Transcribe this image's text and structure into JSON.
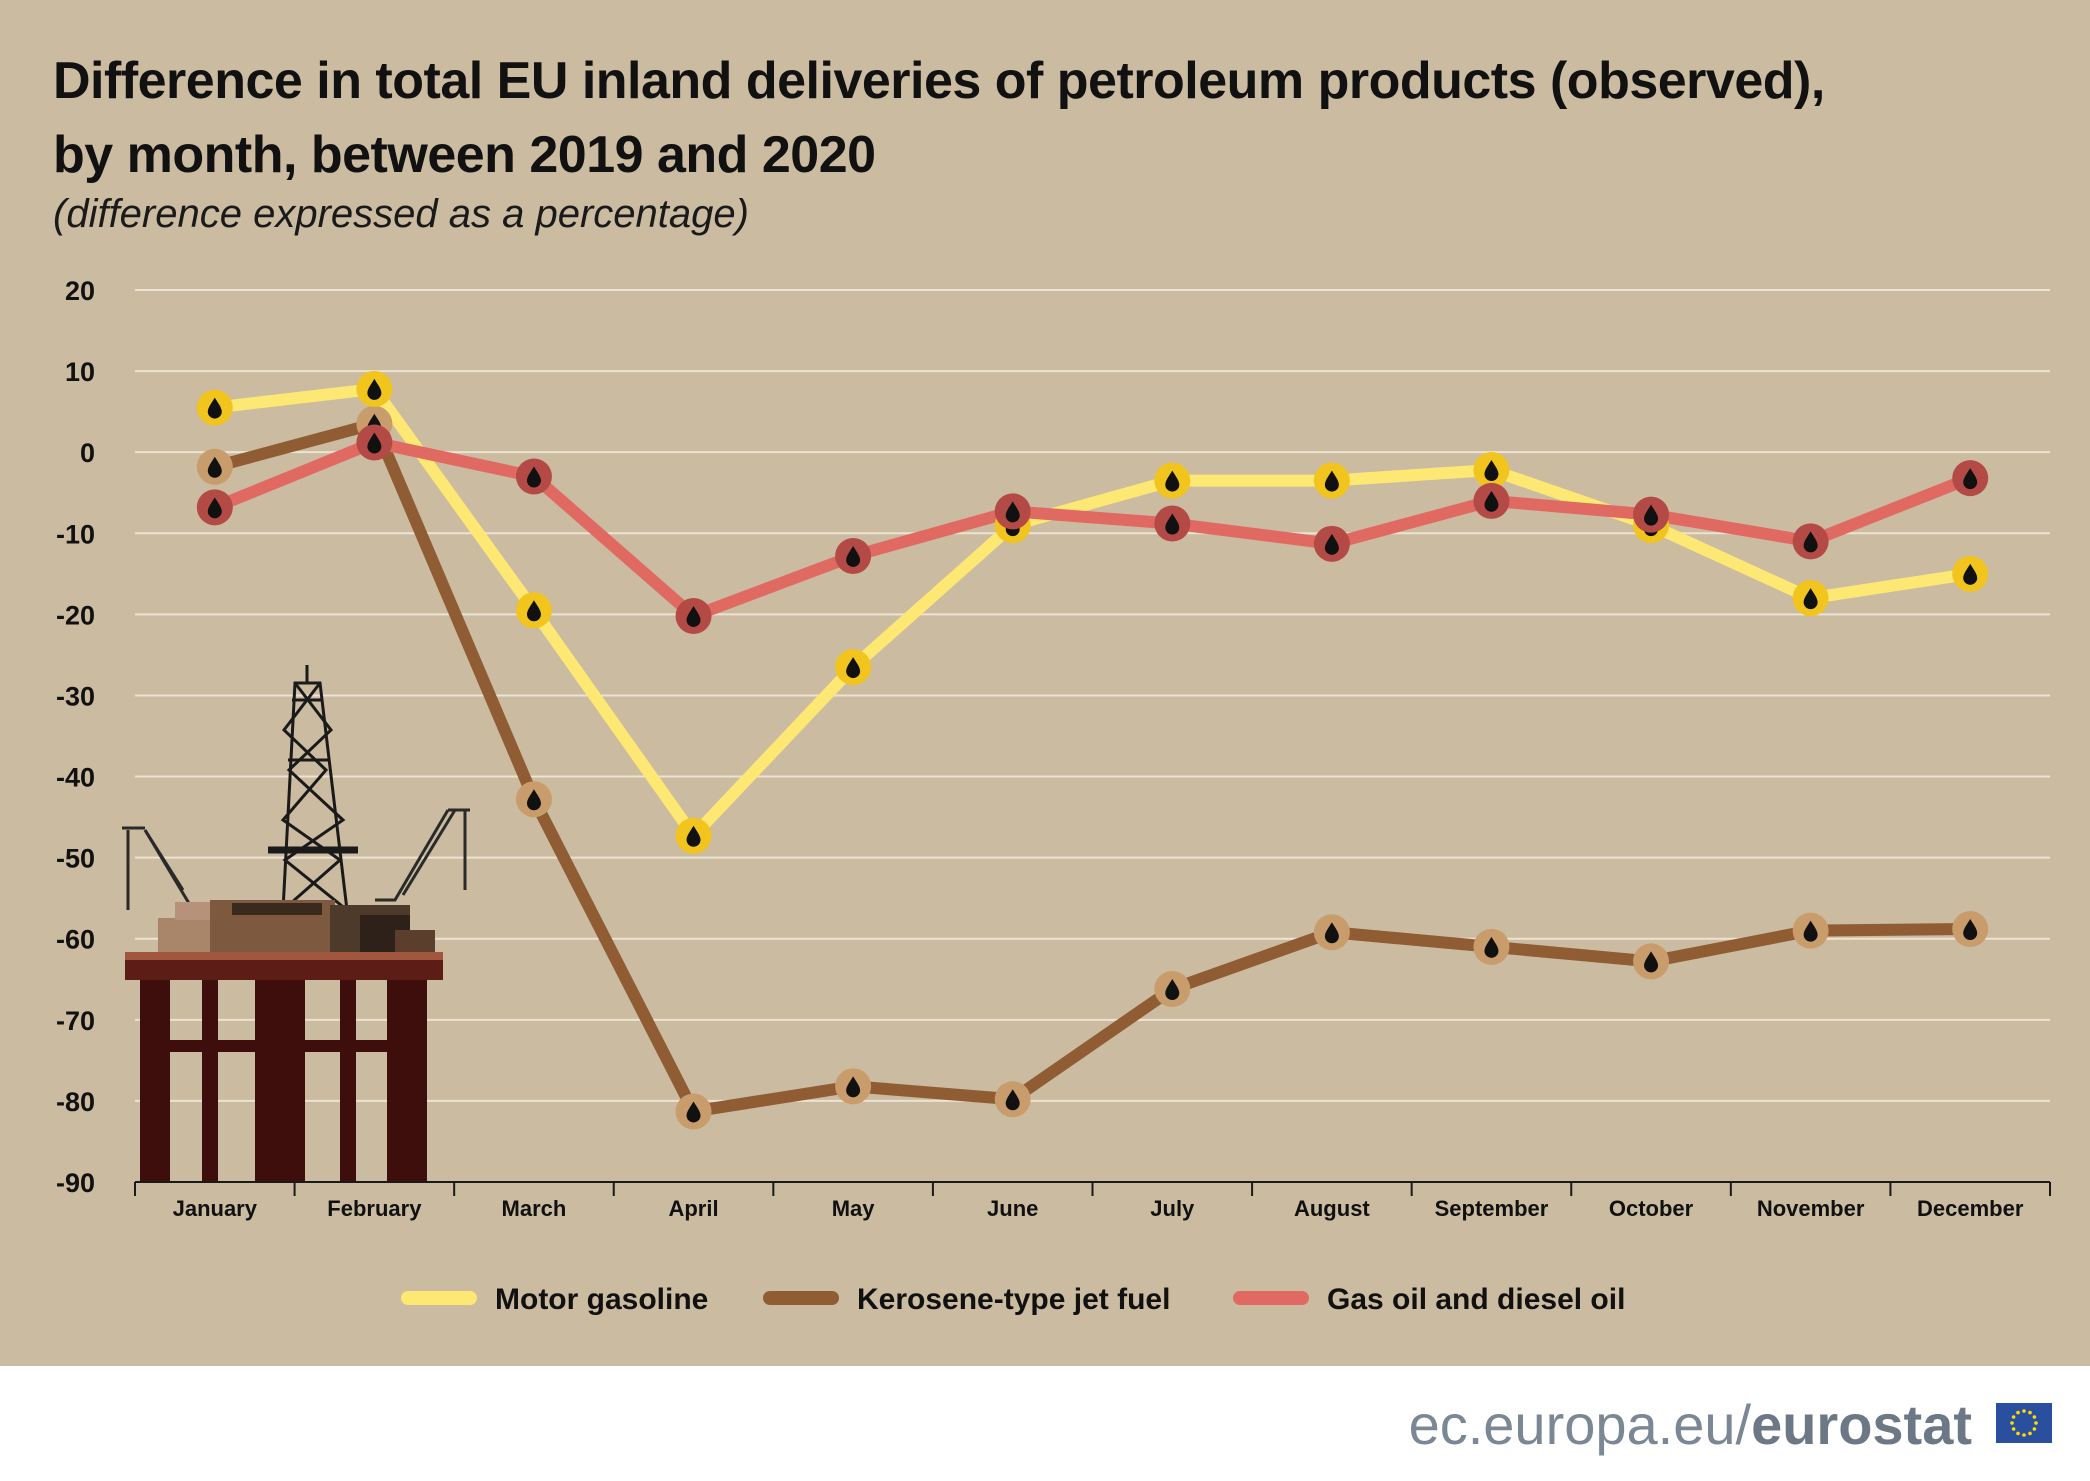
{
  "header": {
    "title_line1": "Difference in total EU inland deliveries of petroleum products (observed),",
    "title_line2": "by month, between 2019 and 2020",
    "subtitle": "(difference expressed as a percentage)"
  },
  "footer": {
    "brand_prefix": "ec.europa.eu/",
    "brand_name": "eurostat",
    "flag_icon": "eu-flag-icon"
  },
  "colors": {
    "background": "#cbbba0",
    "motor_gasoline": "#fde873",
    "jet_fuel": "#8f5c33",
    "gas_oil": "#e06a62"
  },
  "illustration": {
    "icon": "oil-rig-icon"
  },
  "chart_data": {
    "type": "line",
    "categories": [
      "January",
      "February",
      "March",
      "April",
      "May",
      "June",
      "July",
      "August",
      "September",
      "October",
      "November",
      "December"
    ],
    "ylim": [
      -90,
      20
    ],
    "yticks": [
      20,
      10,
      0,
      -10,
      -20,
      -30,
      -40,
      -50,
      -60,
      -70,
      -80,
      -90
    ],
    "grid": true,
    "legend_position": "bottom",
    "marker_icon": "oil-drop-icon",
    "series": [
      {
        "name": "Motor gasoline",
        "color": "#fde873",
        "values": [
          5.5,
          7.8,
          -19.5,
          -47.3,
          -26.5,
          -9.0,
          -3.5,
          -3.5,
          -2.2,
          -9.0,
          -18.0,
          -15.0
        ]
      },
      {
        "name": "Kerosene-type jet fuel",
        "color": "#8f5c33",
        "values": [
          -1.8,
          3.5,
          -42.8,
          -81.3,
          -78.2,
          -79.8,
          -66.2,
          -59.2,
          -61.0,
          -62.8,
          -59.0,
          -58.8
        ]
      },
      {
        "name": "Gas oil and diesel oil",
        "color": "#e06a62",
        "values": [
          -6.8,
          1.2,
          -3.0,
          -20.2,
          -12.8,
          -7.3,
          -8.8,
          -11.3,
          -6.0,
          -7.7,
          -11.0,
          -3.2
        ]
      }
    ]
  }
}
